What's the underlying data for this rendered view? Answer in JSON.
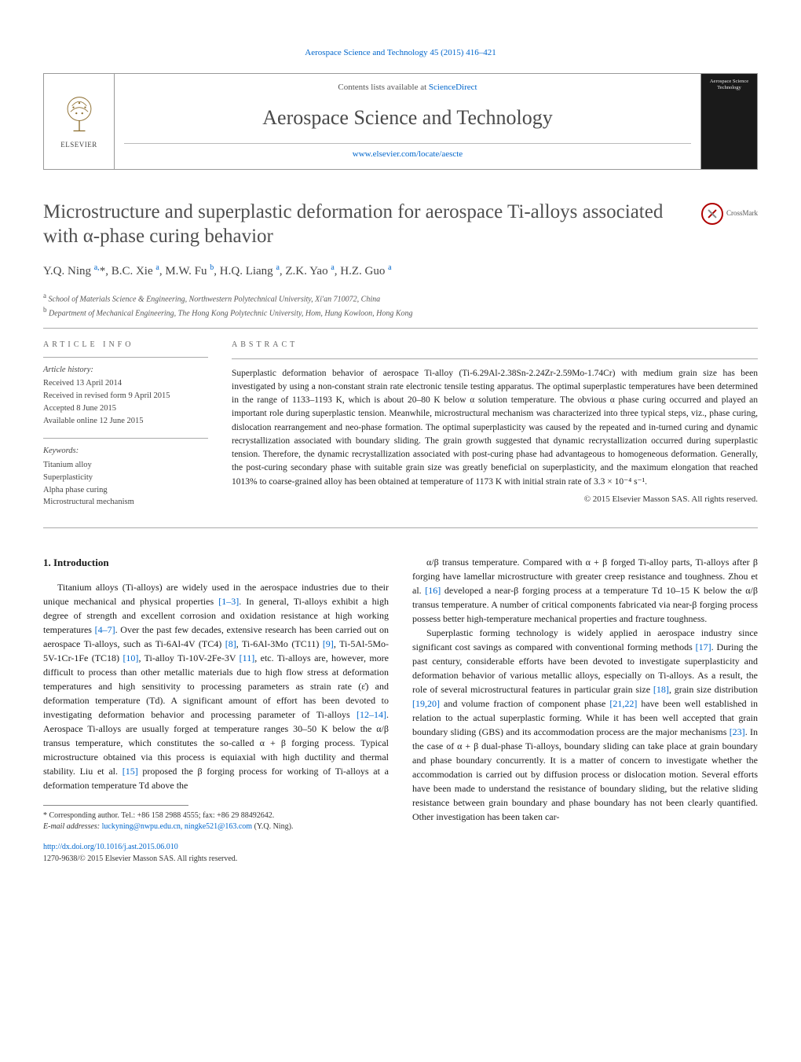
{
  "journal": {
    "citation_top": "Aerospace Science and Technology 45 (2015) 416–421",
    "contents_prefix": "Contents lists available at ",
    "contents_link": "ScienceDirect",
    "title": "Aerospace Science and Technology",
    "site": "www.elsevier.com/locate/aescte",
    "publisher_label": "ELSEVIER",
    "cover_label": "Aerospace Science Technology"
  },
  "crossmark": {
    "label": "CrossMark"
  },
  "article": {
    "title": "Microstructure and superplastic deformation for aerospace Ti-alloys associated with α-phase curing behavior",
    "authors_html": "Y.Q. Ning <sup>a,</sup>*, B.C. Xie <sup>a</sup>, M.W. Fu <sup>b</sup>, H.Q. Liang <sup>a</sup>, Z.K. Yao <sup>a</sup>, H.Z. Guo <sup>a</sup>",
    "affiliations": [
      "a School of Materials Science & Engineering, Northwestern Polytechnical University, Xi'an 710072, China",
      "b Department of Mechanical Engineering, The Hong Kong Polytechnic University, Hom, Hung Kowloon, Hong Kong"
    ]
  },
  "info": {
    "heading": "article info",
    "history_label": "Article history:",
    "history": [
      "Received 13 April 2014",
      "Received in revised form 9 April 2015",
      "Accepted 8 June 2015",
      "Available online 12 June 2015"
    ],
    "keywords_label": "Keywords:",
    "keywords": [
      "Titanium alloy",
      "Superplasticity",
      "Alpha phase curing",
      "Microstructural mechanism"
    ]
  },
  "abstract": {
    "heading": "abstract",
    "text": "Superplastic deformation behavior of aerospace Ti-alloy (Ti-6.29Al-2.38Sn-2.24Zr-2.59Mo-1.74Cr) with medium grain size has been investigated by using a non-constant strain rate electronic tensile testing apparatus. The optimal superplastic temperatures have been determined in the range of 1133–1193 K, which is about 20–80 K below α solution temperature. The obvious α phase curing occurred and played an important role during superplastic tension. Meanwhile, microstructural mechanism was characterized into three typical steps, viz., phase curing, dislocation rearrangement and neo-phase formation. The optimal superplasticity was caused by the repeated and in-turned curing and dynamic recrystallization associated with boundary sliding. The grain growth suggested that dynamic recrystallization occurred during superplastic tension. Therefore, the dynamic recrystallization associated with post-curing phase had advantageous to homogeneous deformation. Generally, the post-curing secondary phase with suitable grain size was greatly beneficial on superplasticity, and the maximum elongation that reached 1013% to coarse-grained alloy has been obtained at temperature of 1173 K with initial strain rate of 3.3 × 10⁻⁴ s⁻¹.",
    "copyright": "© 2015 Elsevier Masson SAS. All rights reserved."
  },
  "body": {
    "section_heading": "1. Introduction",
    "p1": "Titanium alloys (Ti-alloys) are widely used in the aerospace industries due to their unique mechanical and physical properties [1–3]. In general, Ti-alloys exhibit a high degree of strength and excellent corrosion and oxidation resistance at high working temperatures [4–7]. Over the past few decades, extensive research has been carried out on aerospace Ti-alloys, such as Ti-6Al-4V (TC4) [8], Ti-6Al-3Mo (TC11) [9], Ti-5Al-5Mo-5V-1Cr-1Fe (TC18) [10], Ti-alloy Ti-10V-2Fe-3V [11], etc. Ti-alloys are, however, more difficult to process than other metallic materials due to high flow stress at deformation temperatures and high sensitivity to processing parameters as strain rate (ε̇) and deformation temperature (Td). A significant amount of effort has been devoted to investigating deformation behavior and processing parameter of Ti-alloys [12–14]. Aerospace Ti-alloys are usually forged at temperature ranges 30–50 K below the α/β transus temperature, which constitutes the so-called α + β forging process. Typical microstructure obtained via this process is equiaxial with high ductility and thermal stability. Liu et al. [15] proposed the β forging process for working of Ti-alloys at a deformation temperature Td above the",
    "p2": "α/β transus temperature. Compared with α + β forged Ti-alloy parts, Ti-alloys after β forging have lamellar microstructure with greater creep resistance and toughness. Zhou et al. [16] developed a near-β forging process at a temperature Td 10–15 K below the α/β transus temperature. A number of critical components fabricated via near-β forging process possess better high-temperature mechanical properties and fracture toughness.",
    "p3": "Superplastic forming technology is widely applied in aerospace industry since significant cost savings as compared with conventional forming methods [17]. During the past century, considerable efforts have been devoted to investigate superplasticity and deformation behavior of various metallic alloys, especially on Ti-alloys. As a result, the role of several microstructural features in particular grain size [18], grain size distribution [19,20] and volume fraction of component phase [21,22] have been well established in relation to the actual superplastic forming. While it has been well accepted that grain boundary sliding (GBS) and its accommodation process are the major mechanisms [23]. In the case of α + β dual-phase Ti-alloys, boundary sliding can take place at grain boundary and phase boundary concurrently. It is a matter of concern to investigate whether the accommodation is carried out by diffusion process or dislocation motion. Several efforts have been made to understand the resistance of boundary sliding, but the relative sliding resistance between grain boundary and phase boundary has not been clearly quantified. Other investigation has been taken car-"
  },
  "footnotes": {
    "corr": "* Corresponding author. Tel.: +86 158 2988 4555; fax: +86 29 88492642.",
    "email_label": "E-mail addresses:",
    "emails": "luckyning@nwpu.edu.cn, ningke521@163.com",
    "email_person": "(Y.Q. Ning)."
  },
  "footer": {
    "doi": "http://dx.doi.org/10.1016/j.ast.2015.06.010",
    "issn": "1270-9638/© 2015 Elsevier Masson SAS. All rights reserved."
  },
  "colors": {
    "link": "#0066cc",
    "text": "#231f20",
    "heading_gray": "#505050",
    "rule": "#aaaaaa"
  }
}
